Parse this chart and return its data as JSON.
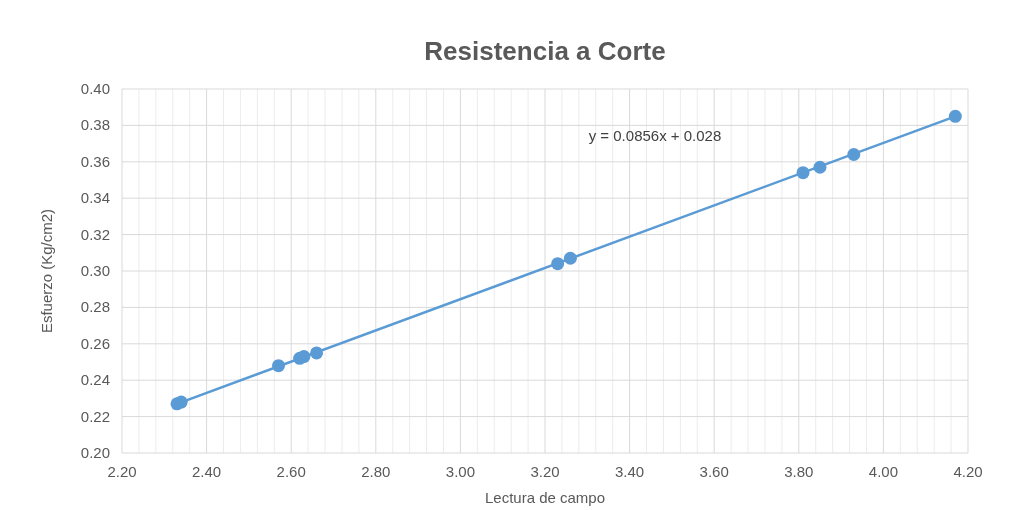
{
  "chart_data": {
    "type": "scatter",
    "title": "Resistencia a Corte",
    "xlabel": "Lectura de campo",
    "ylabel": "Esfuerzo (Kg/cm2)",
    "xlim": [
      2.2,
      4.2
    ],
    "ylim": [
      0.2,
      0.4
    ],
    "xticks": [
      {
        "value": 2.2,
        "label": "2.20"
      },
      {
        "value": 2.24,
        "label": null
      },
      {
        "value": 2.28,
        "label": null
      },
      {
        "value": 2.32,
        "label": null
      },
      {
        "value": 2.36,
        "label": null
      },
      {
        "value": 2.4,
        "label": "2.40"
      },
      {
        "value": 2.44,
        "label": null
      },
      {
        "value": 2.48,
        "label": null
      },
      {
        "value": 2.52,
        "label": null
      },
      {
        "value": 2.56,
        "label": null
      },
      {
        "value": 2.6,
        "label": "2.60"
      },
      {
        "value": 2.64,
        "label": null
      },
      {
        "value": 2.68,
        "label": null
      },
      {
        "value": 2.72,
        "label": null
      },
      {
        "value": 2.76,
        "label": null
      },
      {
        "value": 2.8,
        "label": "2.80"
      },
      {
        "value": 2.84,
        "label": null
      },
      {
        "value": 2.88,
        "label": null
      },
      {
        "value": 2.92,
        "label": null
      },
      {
        "value": 2.96,
        "label": null
      },
      {
        "value": 3.0,
        "label": "3.00"
      },
      {
        "value": 3.04,
        "label": null
      },
      {
        "value": 3.08,
        "label": null
      },
      {
        "value": 3.12,
        "label": null
      },
      {
        "value": 3.16,
        "label": null
      },
      {
        "value": 3.2,
        "label": "3.20"
      },
      {
        "value": 3.24,
        "label": null
      },
      {
        "value": 3.28,
        "label": null
      },
      {
        "value": 3.32,
        "label": null
      },
      {
        "value": 3.36,
        "label": null
      },
      {
        "value": 3.4,
        "label": "3.40"
      },
      {
        "value": 3.44,
        "label": null
      },
      {
        "value": 3.48,
        "label": null
      },
      {
        "value": 3.52,
        "label": null
      },
      {
        "value": 3.56,
        "label": null
      },
      {
        "value": 3.6,
        "label": "3.60"
      },
      {
        "value": 3.64,
        "label": null
      },
      {
        "value": 3.68,
        "label": null
      },
      {
        "value": 3.72,
        "label": null
      },
      {
        "value": 3.76,
        "label": null
      },
      {
        "value": 3.8,
        "label": "3.80"
      },
      {
        "value": 3.84,
        "label": null
      },
      {
        "value": 3.88,
        "label": null
      },
      {
        "value": 3.92,
        "label": null
      },
      {
        "value": 3.96,
        "label": null
      },
      {
        "value": 4.0,
        "label": "4.00"
      },
      {
        "value": 4.04,
        "label": null
      },
      {
        "value": 4.08,
        "label": null
      },
      {
        "value": 4.12,
        "label": null
      },
      {
        "value": 4.16,
        "label": null
      },
      {
        "value": 4.2,
        "label": "4.20"
      }
    ],
    "yticks": [
      {
        "value": 0.2,
        "label": "0.20"
      },
      {
        "value": 0.22,
        "label": "0.22"
      },
      {
        "value": 0.24,
        "label": "0.24"
      },
      {
        "value": 0.26,
        "label": "0.26"
      },
      {
        "value": 0.28,
        "label": "0.28"
      },
      {
        "value": 0.3,
        "label": "0.30"
      },
      {
        "value": 0.32,
        "label": "0.32"
      },
      {
        "value": 0.34,
        "label": "0.34"
      },
      {
        "value": 0.36,
        "label": "0.36"
      },
      {
        "value": 0.38,
        "label": "0.38"
      },
      {
        "value": 0.4,
        "label": "0.40"
      }
    ],
    "grid": true,
    "annotations": [
      "y = 0.0856x + 0.028"
    ],
    "series": [
      {
        "marker": "circle",
        "color": "#5b9bd5",
        "x": [
          2.33,
          2.34,
          2.57,
          2.62,
          2.63,
          2.66,
          3.23,
          3.26,
          3.81,
          3.85,
          3.93,
          4.17
        ],
        "values": [
          0.227,
          0.228,
          0.248,
          0.252,
          0.253,
          0.255,
          0.304,
          0.307,
          0.354,
          0.357,
          0.364,
          0.385
        ]
      },
      {
        "type": "line",
        "marker": "none",
        "color": "#5b9bd5",
        "x": [
          2.33,
          4.17
        ],
        "values": [
          0.227,
          0.385
        ]
      }
    ]
  }
}
